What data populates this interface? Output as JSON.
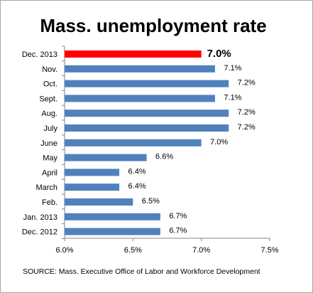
{
  "chart_data": {
    "type": "bar",
    "orientation": "horizontal",
    "title": "Mass. unemployment rate",
    "categories": [
      "Dec. 2013",
      "Nov.",
      "Oct.",
      "Sept.",
      "Aug.",
      "July",
      "June",
      "May",
      "April",
      "March",
      "Feb.",
      "Jan. 2013",
      "Dec. 2012"
    ],
    "values": [
      7.0,
      7.1,
      7.2,
      7.1,
      7.2,
      7.2,
      7.0,
      6.6,
      6.4,
      6.4,
      6.5,
      6.7,
      6.7
    ],
    "value_labels": [
      "7.0%",
      "7.1%",
      "7.2%",
      "7.1%",
      "7.2%",
      "7.2%",
      "7.0%",
      "6.6%",
      "6.4%",
      "6.4%",
      "6.5%",
      "6.7%",
      "6.7%"
    ],
    "xlim": [
      6.0,
      7.5
    ],
    "xticks": [
      6.0,
      6.5,
      7.0,
      7.5
    ],
    "xtick_labels": [
      "6.0%",
      "6.5%",
      "7.0%",
      "7.5%"
    ],
    "highlight_index": 0,
    "colors": {
      "bar": "#4f81bd",
      "highlight": "#ff0000"
    },
    "grid": false,
    "legend": false,
    "source": "SOURCE: Mass. Executive Office of Labor and Workforce Development"
  }
}
